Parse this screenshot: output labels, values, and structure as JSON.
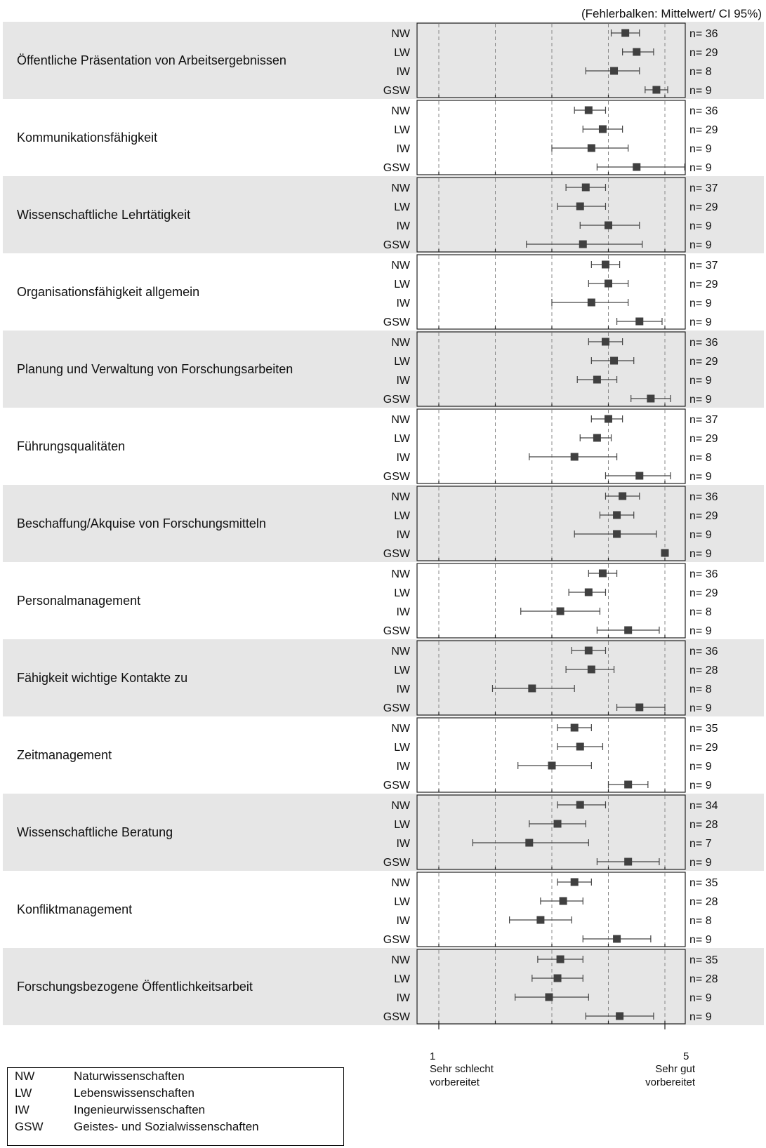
{
  "header": {
    "top_cut_text": "",
    "ci_note": "(Fehlerbalken: Mittelwert/ CI 95%)"
  },
  "chart_data": {
    "type": "errorbar",
    "title": "",
    "xlim": [
      1,
      5
    ],
    "x_ticks": [
      {
        "value": 1,
        "label": "1"
      },
      {
        "value": 5,
        "label": "5"
      }
    ],
    "x_end_labels": {
      "left": [
        "Sehr schlecht",
        "vorbereitet"
      ],
      "right": [
        "Sehr gut",
        "vorbereitet"
      ]
    },
    "grid": "dashed vertical lines at 1, 2, 3, 4, 5",
    "groups": [
      "NW",
      "LW",
      "IW",
      "GSW"
    ],
    "panels": [
      {
        "label": "Öffentliche Präsentation von Arbeitsergebnissen",
        "rows": [
          {
            "group": "NW",
            "mean": 4.3,
            "lo": 4.05,
            "hi": 4.55,
            "n": "n= 36"
          },
          {
            "group": "LW",
            "mean": 4.5,
            "lo": 4.25,
            "hi": 4.8,
            "n": "n= 29"
          },
          {
            "group": "IW",
            "mean": 4.1,
            "lo": 3.6,
            "hi": 4.55,
            "n": "n= 8"
          },
          {
            "group": "GSW",
            "mean": 4.85,
            "lo": 4.65,
            "hi": 5.05,
            "n": "n= 9"
          }
        ]
      },
      {
        "label": "Kommunikationsfähigkeit",
        "rows": [
          {
            "group": "NW",
            "mean": 3.65,
            "lo": 3.4,
            "hi": 3.95,
            "n": "n= 36"
          },
          {
            "group": "LW",
            "mean": 3.9,
            "lo": 3.55,
            "hi": 4.25,
            "n": "n= 29"
          },
          {
            "group": "IW",
            "mean": 3.7,
            "lo": 3.0,
            "hi": 4.35,
            "n": "n= 9"
          },
          {
            "group": "GSW",
            "mean": 4.5,
            "lo": 3.8,
            "hi": 5.35,
            "n": "n= 9"
          }
        ]
      },
      {
        "label": "Wissenschaftliche Lehrtätigkeit",
        "rows": [
          {
            "group": "NW",
            "mean": 3.6,
            "lo": 3.25,
            "hi": 3.95,
            "n": "n= 37"
          },
          {
            "group": "LW",
            "mean": 3.5,
            "lo": 3.1,
            "hi": 3.95,
            "n": "n= 29"
          },
          {
            "group": "IW",
            "mean": 4.0,
            "lo": 3.5,
            "hi": 4.55,
            "n": "n= 9"
          },
          {
            "group": "GSW",
            "mean": 3.55,
            "lo": 2.55,
            "hi": 4.6,
            "n": "n= 9"
          }
        ]
      },
      {
        "label": "Organisationsfähigkeit allgemein",
        "rows": [
          {
            "group": "NW",
            "mean": 3.95,
            "lo": 3.7,
            "hi": 4.2,
            "n": "n= 37"
          },
          {
            "group": "LW",
            "mean": 4.0,
            "lo": 3.65,
            "hi": 4.35,
            "n": "n= 29"
          },
          {
            "group": "IW",
            "mean": 3.7,
            "lo": 3.0,
            "hi": 4.35,
            "n": "n= 9"
          },
          {
            "group": "GSW",
            "mean": 4.55,
            "lo": 4.15,
            "hi": 4.95,
            "n": "n= 9"
          }
        ]
      },
      {
        "label": "Planung und Verwaltung von Forschungsarbeiten",
        "rows": [
          {
            "group": "NW",
            "mean": 3.95,
            "lo": 3.65,
            "hi": 4.25,
            "n": "n= 36"
          },
          {
            "group": "LW",
            "mean": 4.1,
            "lo": 3.7,
            "hi": 4.45,
            "n": "n= 29"
          },
          {
            "group": "IW",
            "mean": 3.8,
            "lo": 3.45,
            "hi": 4.15,
            "n": "n= 9"
          },
          {
            "group": "GSW",
            "mean": 4.75,
            "lo": 4.4,
            "hi": 5.1,
            "n": "n= 9"
          }
        ]
      },
      {
        "label": "Führungsqualitäten",
        "rows": [
          {
            "group": "NW",
            "mean": 4.0,
            "lo": 3.7,
            "hi": 4.25,
            "n": "n= 37"
          },
          {
            "group": "LW",
            "mean": 3.8,
            "lo": 3.5,
            "hi": 4.05,
            "n": "n= 29"
          },
          {
            "group": "IW",
            "mean": 3.4,
            "lo": 2.6,
            "hi": 4.15,
            "n": "n= 8"
          },
          {
            "group": "GSW",
            "mean": 4.55,
            "lo": 3.95,
            "hi": 5.1,
            "n": "n= 9"
          }
        ]
      },
      {
        "label": "Beschaffung/Akquise von Forschungsmitteln",
        "rows": [
          {
            "group": "NW",
            "mean": 4.25,
            "lo": 3.95,
            "hi": 4.55,
            "n": "n= 36"
          },
          {
            "group": "LW",
            "mean": 4.15,
            "lo": 3.85,
            "hi": 4.45,
            "n": "n= 29"
          },
          {
            "group": "IW",
            "mean": 4.15,
            "lo": 3.4,
            "hi": 4.85,
            "n": "n= 9"
          },
          {
            "group": "GSW",
            "mean": 5.0,
            "lo": 5.0,
            "hi": 5.0,
            "n": "n= 9"
          }
        ]
      },
      {
        "label": "Personalmanagement",
        "rows": [
          {
            "group": "NW",
            "mean": 3.9,
            "lo": 3.65,
            "hi": 4.15,
            "n": "n= 36"
          },
          {
            "group": "LW",
            "mean": 3.65,
            "lo": 3.3,
            "hi": 3.95,
            "n": "n= 29"
          },
          {
            "group": "IW",
            "mean": 3.15,
            "lo": 2.45,
            "hi": 3.85,
            "n": "n= 8"
          },
          {
            "group": "GSW",
            "mean": 4.35,
            "lo": 3.8,
            "hi": 4.9,
            "n": "n= 9"
          }
        ]
      },
      {
        "label": "Fähigkeit wichtige Kontakte zu",
        "rows": [
          {
            "group": "NW",
            "mean": 3.65,
            "lo": 3.35,
            "hi": 3.95,
            "n": "n= 36"
          },
          {
            "group": "LW",
            "mean": 3.7,
            "lo": 3.25,
            "hi": 4.1,
            "n": "n= 28"
          },
          {
            "group": "IW",
            "mean": 2.65,
            "lo": 1.95,
            "hi": 3.4,
            "n": "n= 8"
          },
          {
            "group": "GSW",
            "mean": 4.55,
            "lo": 4.15,
            "hi": 5.0,
            "n": "n= 9"
          }
        ]
      },
      {
        "label": "Zeitmanagement",
        "rows": [
          {
            "group": "NW",
            "mean": 3.4,
            "lo": 3.1,
            "hi": 3.7,
            "n": "n= 35"
          },
          {
            "group": "LW",
            "mean": 3.5,
            "lo": 3.1,
            "hi": 3.9,
            "n": "n= 29"
          },
          {
            "group": "IW",
            "mean": 3.0,
            "lo": 2.4,
            "hi": 3.7,
            "n": "n= 9"
          },
          {
            "group": "GSW",
            "mean": 4.35,
            "lo": 4.0,
            "hi": 4.7,
            "n": "n= 9"
          }
        ]
      },
      {
        "label": "Wissenschaftliche Beratung",
        "rows": [
          {
            "group": "NW",
            "mean": 3.5,
            "lo": 3.1,
            "hi": 3.95,
            "n": "n= 34"
          },
          {
            "group": "LW",
            "mean": 3.1,
            "lo": 2.6,
            "hi": 3.6,
            "n": "n= 28"
          },
          {
            "group": "IW",
            "mean": 2.6,
            "lo": 1.6,
            "hi": 3.65,
            "n": "n= 7"
          },
          {
            "group": "GSW",
            "mean": 4.35,
            "lo": 3.8,
            "hi": 4.9,
            "n": "n= 9"
          }
        ]
      },
      {
        "label": "Konfliktmanagement",
        "rows": [
          {
            "group": "NW",
            "mean": 3.4,
            "lo": 3.1,
            "hi": 3.7,
            "n": "n= 35"
          },
          {
            "group": "LW",
            "mean": 3.2,
            "lo": 2.8,
            "hi": 3.55,
            "n": "n= 28"
          },
          {
            "group": "IW",
            "mean": 2.8,
            "lo": 2.25,
            "hi": 3.35,
            "n": "n= 8"
          },
          {
            "group": "GSW",
            "mean": 4.15,
            "lo": 3.55,
            "hi": 4.75,
            "n": "n= 9"
          }
        ]
      },
      {
        "label": "Forschungsbezogene Öffentlichkeitsarbeit",
        "rows": [
          {
            "group": "NW",
            "mean": 3.15,
            "lo": 2.75,
            "hi": 3.55,
            "n": "n= 35"
          },
          {
            "group": "LW",
            "mean": 3.1,
            "lo": 2.65,
            "hi": 3.55,
            "n": "n= 28"
          },
          {
            "group": "IW",
            "mean": 2.95,
            "lo": 2.35,
            "hi": 3.65,
            "n": "n= 9"
          },
          {
            "group": "GSW",
            "mean": 4.2,
            "lo": 3.6,
            "hi": 4.8,
            "n": "n= 9"
          }
        ]
      }
    ]
  },
  "legend": {
    "items": [
      {
        "abbr": "NW",
        "label": "Naturwissenschaften"
      },
      {
        "abbr": "LW",
        "label": "Lebenswissenschaften"
      },
      {
        "abbr": "IW",
        "label": "Ingenieurwissenschaften"
      },
      {
        "abbr": "GSW",
        "label": "Geistes- und Sozialwissenschaften"
      }
    ]
  },
  "colors": {
    "band_shaded": "#e6e6e6",
    "band_plain": "#ffffff",
    "marker": "#404040",
    "grid": "#888888"
  }
}
